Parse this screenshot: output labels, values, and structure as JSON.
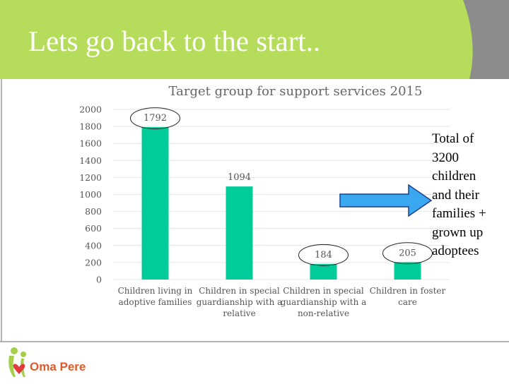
{
  "slide": {
    "title": "Lets go back to the start..",
    "side_note": "Total of\n3200\nchildren\nand their\nfamilies +\ngrown up\nadoptees",
    "brand_name": "Oma Pere"
  },
  "colors": {
    "header_green": "#b5dc5a",
    "header_gray": "#8c8c8c",
    "bar": "#00cc99",
    "arrow_fill": "#3aa8f0",
    "arrow_stroke": "#1c3f8a",
    "divider": "#9a9a9a",
    "brand": "#e05a2a"
  },
  "chart_data": {
    "type": "bar",
    "title": "Target group for support services 2015",
    "categories": [
      [
        "Children living in",
        "adoptive families"
      ],
      [
        "Children in special",
        "guardianship with a",
        "relative"
      ],
      [
        "Children in special",
        "guardianship with a",
        "non-relative"
      ],
      [
        "Children in foster",
        "care"
      ]
    ],
    "values": [
      1792,
      1094,
      184,
      205
    ],
    "data_labels": [
      "1792",
      "1094",
      "184",
      "205"
    ],
    "circled": [
      true,
      false,
      true,
      true
    ],
    "yticks": [
      0,
      200,
      400,
      600,
      800,
      1000,
      1200,
      1400,
      1600,
      1800,
      2000
    ],
    "ylim": [
      0,
      2000
    ],
    "grid": true,
    "xlabel": "",
    "ylabel": ""
  }
}
